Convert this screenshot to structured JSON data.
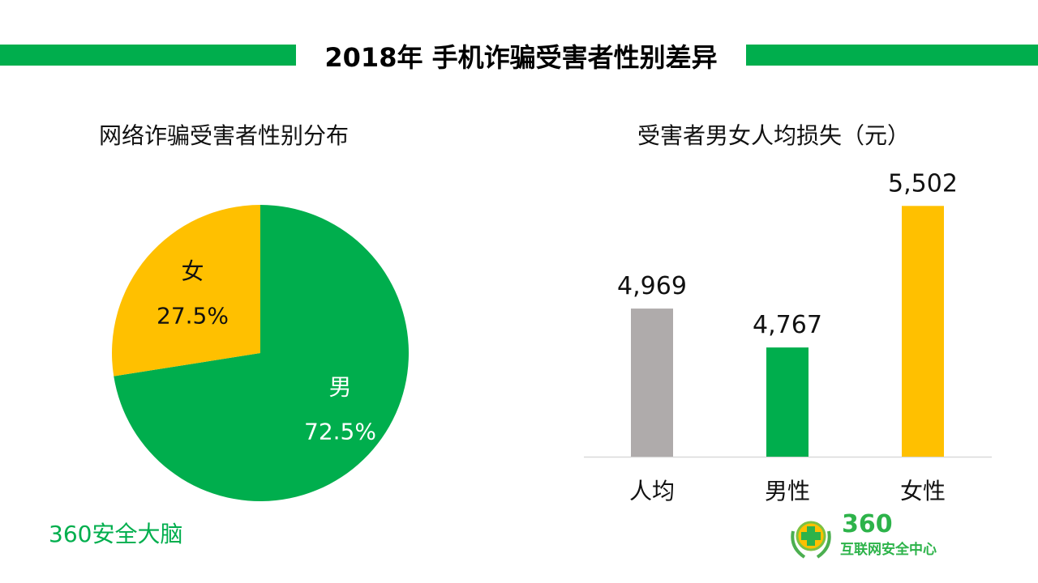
{
  "title": "2018年 手机诈骗受害者性别差异",
  "watermark": "360安全大脑",
  "logo": {
    "number": "360",
    "text": "互联网安全中心"
  },
  "colors": {
    "green": "#00ae4d",
    "yellow": "#ffc000",
    "gray": "#afabab"
  },
  "chart_data": [
    {
      "type": "pie",
      "title": "网络诈骗受害者性别分布",
      "slices": [
        {
          "label": "男",
          "value": 72.5,
          "display": "72.5%",
          "color": "#00ae4d"
        },
        {
          "label": "女",
          "value": 27.5,
          "display": "27.5%",
          "color": "#ffc000"
        }
      ]
    },
    {
      "type": "bar",
      "title": "受害者男女人均损失（元）",
      "categories": [
        "人均",
        "男性",
        "女性"
      ],
      "values": [
        4969,
        4767,
        5502
      ],
      "labels": [
        "4,969",
        "4,767",
        "5,502"
      ],
      "colors": [
        "#afabab",
        "#00ae4d",
        "#ffc000"
      ],
      "ylim": [
        4200,
        5600
      ],
      "grid": false
    }
  ]
}
